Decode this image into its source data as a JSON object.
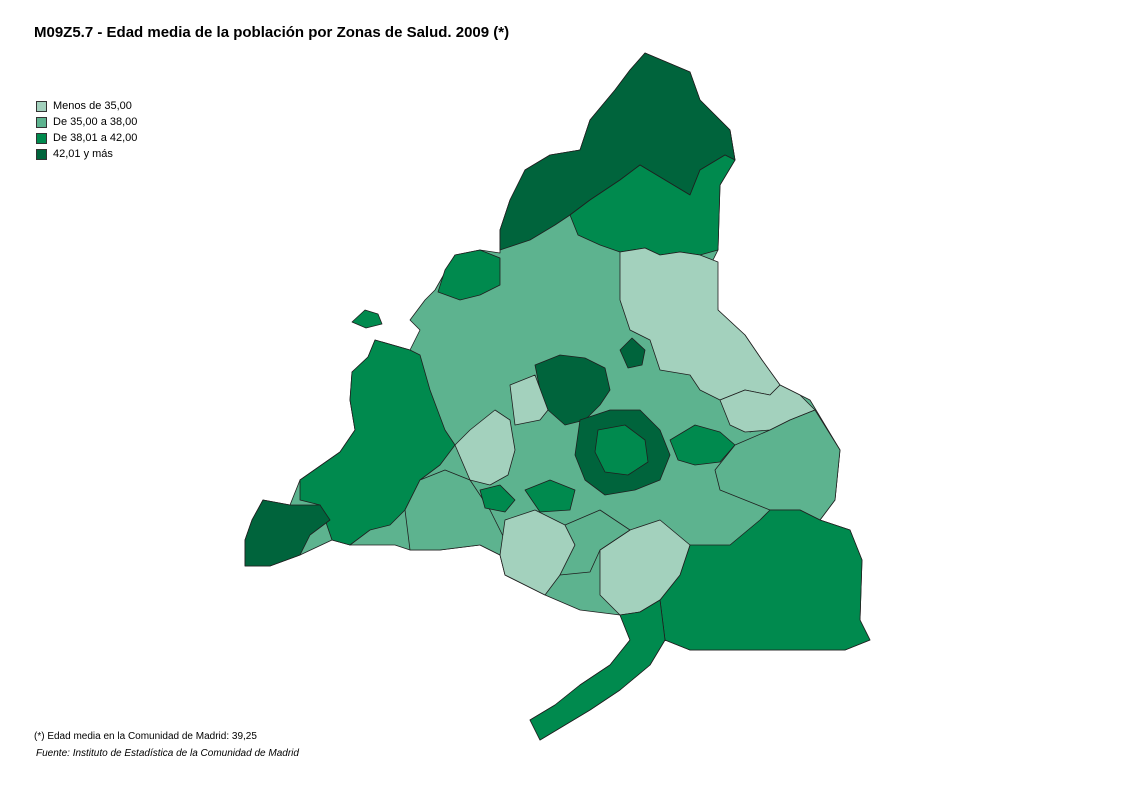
{
  "title": "M09Z5.7 - Edad media de la población por Zonas de Salud. 2009 (*)",
  "legend": [
    {
      "label": "Menos de 35,00",
      "color": "#a3d1bd"
    },
    {
      "label": "De 35,00 a 38,00",
      "color": "#5db38f"
    },
    {
      "label": "De 38,01 a 42,00",
      "color": "#008a4e"
    },
    {
      "label": "42,01 y más",
      "color": "#00643c"
    }
  ],
  "footnote": "(*) Edad  media en la Comunidad de Madrid: 39,25",
  "source": "Fuente: Instituto de Estadística de la Comunidad de Madrid"
}
